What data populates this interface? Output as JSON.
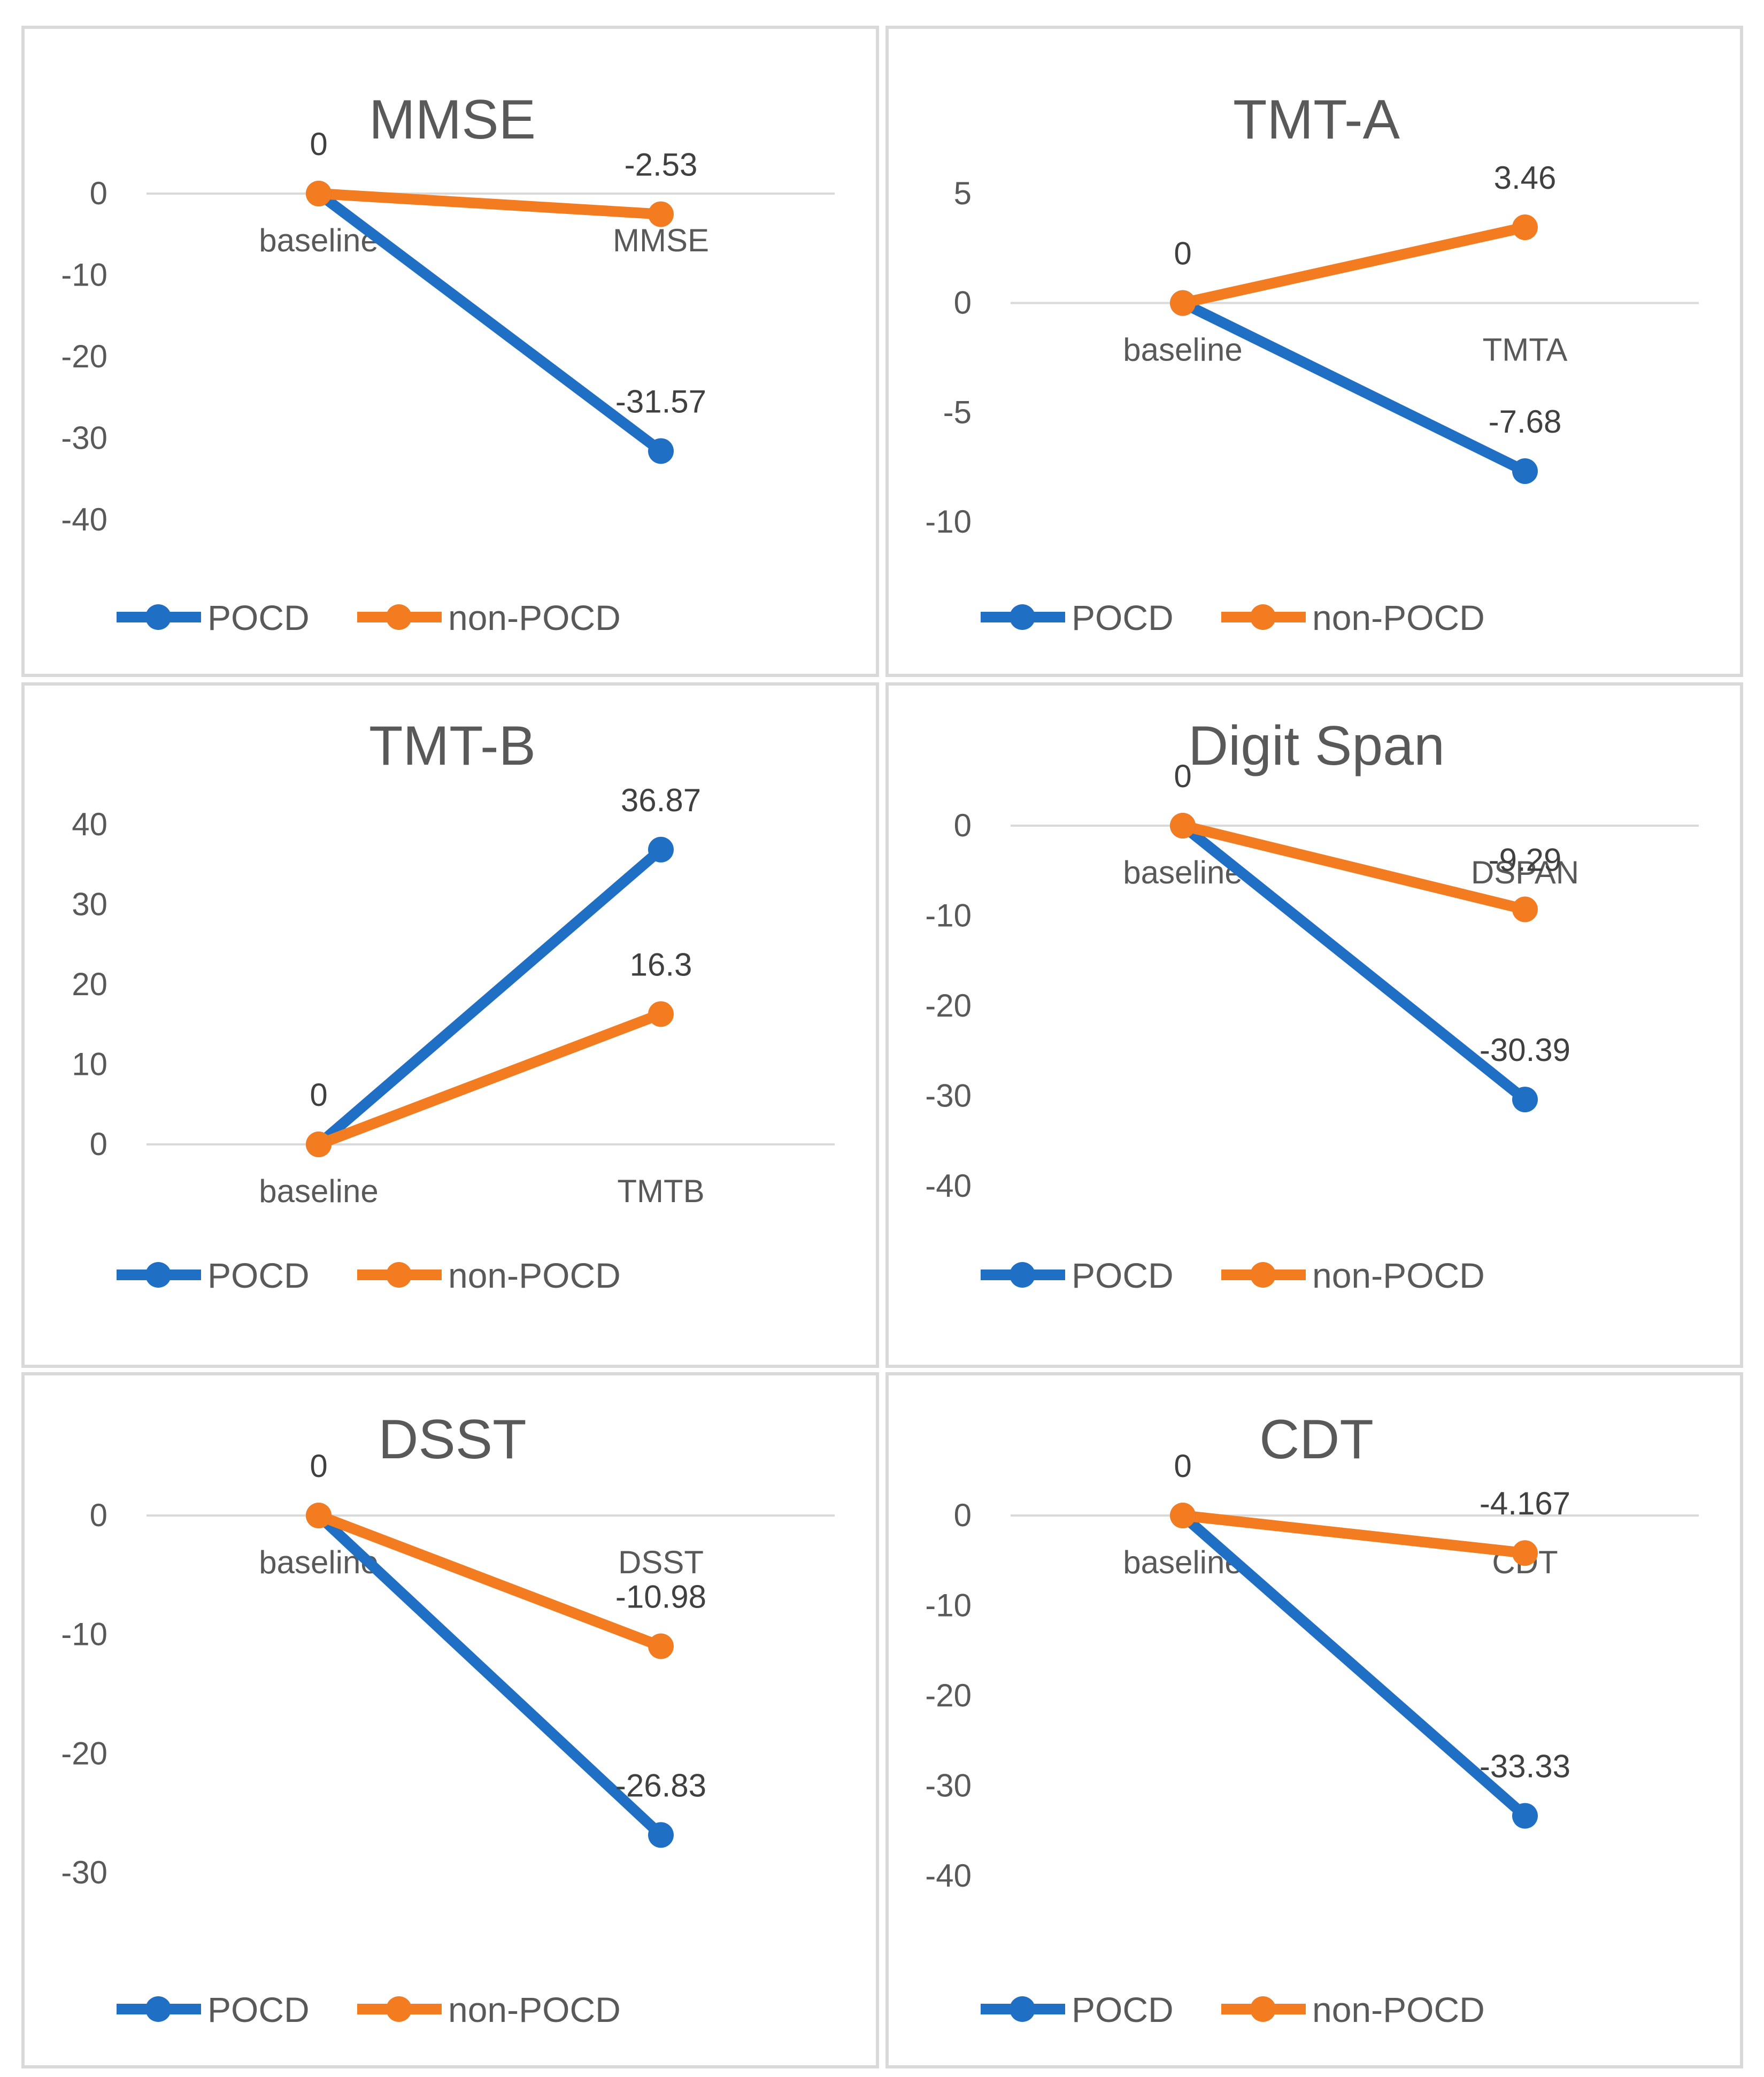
{
  "colors": {
    "series_a": "#1f6fc5",
    "series_b": "#f47c20",
    "text": "#595959",
    "grid": "#d9d9d9"
  },
  "chart_data": [
    {
      "type": "line",
      "title": "MMSE",
      "categories": [
        "baseline",
        "MMSE"
      ],
      "series": [
        {
          "name": "POCD",
          "values": [
            0,
            -31.57
          ],
          "labels": [
            "0",
            "-31.57"
          ]
        },
        {
          "name": "non-POCD",
          "values": [
            0,
            -2.53
          ],
          "labels": [
            "0",
            "-2.53"
          ]
        }
      ],
      "ylim": [
        -40,
        0
      ],
      "yticks": [
        0,
        -10,
        -20,
        -30,
        -40
      ],
      "legend": "bottom"
    },
    {
      "type": "line",
      "title": "TMT-A",
      "categories": [
        "baseline",
        "TMTA"
      ],
      "series": [
        {
          "name": "POCD",
          "values": [
            0,
            -7.68
          ],
          "labels": [
            "0",
            "-7.68"
          ]
        },
        {
          "name": "non-POCD",
          "values": [
            0,
            3.46
          ],
          "labels": [
            "0",
            "3.46"
          ]
        }
      ],
      "ylim": [
        -10,
        5
      ],
      "yticks": [
        5,
        0,
        -5,
        -10
      ],
      "legend": "bottom"
    },
    {
      "type": "line",
      "title": "TMT-B",
      "categories": [
        "baseline",
        "TMTB"
      ],
      "series": [
        {
          "name": "POCD",
          "values": [
            0,
            36.87
          ],
          "labels": [
            "0",
            "36.87"
          ]
        },
        {
          "name": "non-POCD",
          "values": [
            0,
            16.3
          ],
          "labels": [
            "0",
            "16.3"
          ]
        }
      ],
      "ylim": [
        0,
        40
      ],
      "yticks": [
        40,
        30,
        20,
        10,
        0
      ],
      "legend": "bottom"
    },
    {
      "type": "line",
      "title": "Digit Span",
      "categories": [
        "baseline",
        "DSPAN"
      ],
      "series": [
        {
          "name": "POCD",
          "values": [
            0,
            -30.39
          ],
          "labels": [
            "0",
            "-30.39"
          ]
        },
        {
          "name": "non-POCD",
          "values": [
            0,
            -9.29
          ],
          "labels": [
            "0",
            "-9.29"
          ]
        }
      ],
      "ylim": [
        -40,
        0
      ],
      "yticks": [
        0,
        -10,
        -20,
        -30,
        -40
      ],
      "legend": "bottom"
    },
    {
      "type": "line",
      "title": "DSST",
      "categories": [
        "baseline",
        "DSST"
      ],
      "series": [
        {
          "name": "POCD",
          "values": [
            0,
            -26.83
          ],
          "labels": [
            "0",
            "-26.83"
          ]
        },
        {
          "name": "non-POCD",
          "values": [
            0,
            -10.98
          ],
          "labels": [
            "0",
            "-10.98"
          ]
        }
      ],
      "ylim": [
        -30,
        0
      ],
      "yticks": [
        0,
        -10,
        -20,
        -30
      ],
      "legend": "bottom"
    },
    {
      "type": "line",
      "title": "CDT",
      "categories": [
        "baseline",
        "CDT"
      ],
      "series": [
        {
          "name": "POCD",
          "values": [
            0,
            -33.33
          ],
          "labels": [
            "0",
            "-33.33"
          ]
        },
        {
          "name": "non-POCD",
          "values": [
            0,
            -4.167
          ],
          "labels": [
            "0",
            "-4.167"
          ]
        }
      ],
      "ylim": [
        -40,
        0
      ],
      "yticks": [
        0,
        -10,
        -20,
        -30,
        -40
      ],
      "legend": "bottom"
    }
  ]
}
